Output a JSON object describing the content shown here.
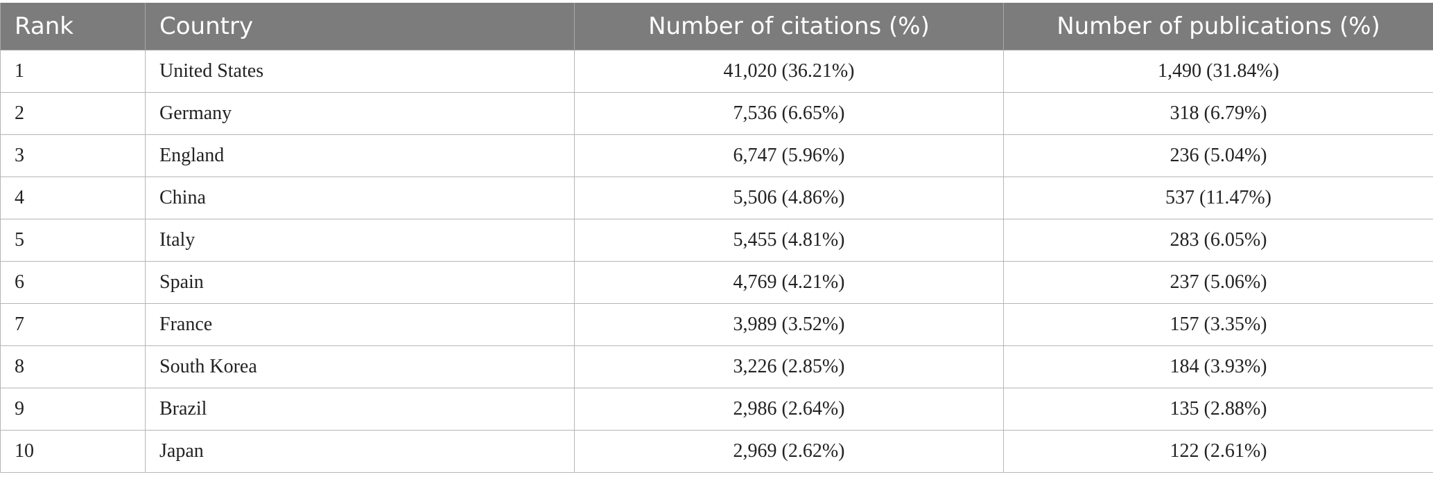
{
  "table": {
    "headers": {
      "rank": "Rank",
      "country": "Country",
      "citations": "Number of citations (%)",
      "publications": "Number of publications (%)"
    },
    "rows": [
      {
        "rank": "1",
        "country": "United States",
        "citations": "41,020 (36.21%)",
        "publications": "1,490 (31.84%)"
      },
      {
        "rank": "2",
        "country": "Germany",
        "citations": "7,536 (6.65%)",
        "publications": "318 (6.79%)"
      },
      {
        "rank": "3",
        "country": "England",
        "citations": "6,747 (5.96%)",
        "publications": "236 (5.04%)"
      },
      {
        "rank": "4",
        "country": "China",
        "citations": "5,506 (4.86%)",
        "publications": "537 (11.47%)"
      },
      {
        "rank": "5",
        "country": "Italy",
        "citations": "5,455 (4.81%)",
        "publications": "283 (6.05%)"
      },
      {
        "rank": "6",
        "country": "Spain",
        "citations": "4,769 (4.21%)",
        "publications": "237 (5.06%)"
      },
      {
        "rank": "7",
        "country": "France",
        "citations": "3,989 (3.52%)",
        "publications": "157 (3.35%)"
      },
      {
        "rank": "8",
        "country": "South Korea",
        "citations": "3,226 (2.85%)",
        "publications": "184 (3.93%)"
      },
      {
        "rank": "9",
        "country": "Brazil",
        "citations": "2,986 (2.64%)",
        "publications": "135 (2.88%)"
      },
      {
        "rank": "10",
        "country": "Japan",
        "citations": "2,969 (2.62%)",
        "publications": "122 (2.61%)"
      }
    ]
  }
}
